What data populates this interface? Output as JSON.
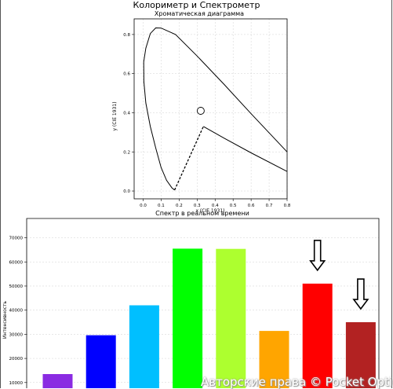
{
  "window": {
    "title": "Колориметр и Спектрометр"
  },
  "watermark": "Авторские права © Pocket Option",
  "chart_data": [
    {
      "type": "line",
      "title": "Хроматическая диаграмма",
      "xlabel": "x (CIE 1931)",
      "ylabel": "y (CIE 1931)",
      "xlim": [
        -0.05,
        0.8
      ],
      "ylim": [
        -0.04,
        0.88
      ],
      "xticks": [
        "0.0",
        "0.1",
        "0.2",
        "0.3",
        "0.4",
        "0.5",
        "0.6",
        "0.7",
        "0.8"
      ],
      "yticks": [
        "0.0",
        "0.2",
        "0.4",
        "0.6",
        "0.8"
      ],
      "grid": true,
      "locus": [
        [
          0.8,
          0.2
        ],
        [
          0.6,
          0.395
        ],
        [
          0.45,
          0.545
        ],
        [
          0.3,
          0.69
        ],
        [
          0.18,
          0.8
        ],
        [
          0.1,
          0.833
        ],
        [
          0.07,
          0.834
        ],
        [
          0.04,
          0.805
        ],
        [
          0.015,
          0.73
        ],
        [
          0.003,
          0.66
        ],
        [
          0.004,
          0.56
        ],
        [
          0.015,
          0.45
        ],
        [
          0.04,
          0.33
        ],
        [
          0.07,
          0.22
        ],
        [
          0.1,
          0.12
        ],
        [
          0.13,
          0.055
        ],
        [
          0.16,
          0.016
        ],
        [
          0.175,
          0.005
        ]
      ],
      "lower_line": [
        [
          0.8,
          0.1
        ],
        [
          0.6,
          0.195
        ],
        [
          0.45,
          0.27
        ],
        [
          0.335,
          0.33
        ]
      ],
      "purple_line": [
        [
          0.175,
          0.005
        ],
        [
          0.335,
          0.33
        ]
      ],
      "marker": {
        "x": 0.32,
        "y": 0.41
      }
    },
    {
      "type": "bar",
      "title": "Спектр в реальном времени",
      "ylabel": "Интенсивность",
      "ylim": [
        7000,
        78000
      ],
      "yticks": [
        10000,
        20000,
        30000,
        40000,
        50000,
        60000,
        70000
      ],
      "grid": true,
      "values": [
        13500,
        29600,
        42000,
        65500,
        65400,
        31400,
        51000,
        35000
      ],
      "colors": [
        "#8a2be2",
        "#0000ff",
        "#00bfff",
        "#00ff00",
        "#adff2f",
        "#ffa500",
        "#ff0000",
        "#b22222"
      ],
      "arrows_over_bars": [
        6,
        7
      ]
    }
  ]
}
